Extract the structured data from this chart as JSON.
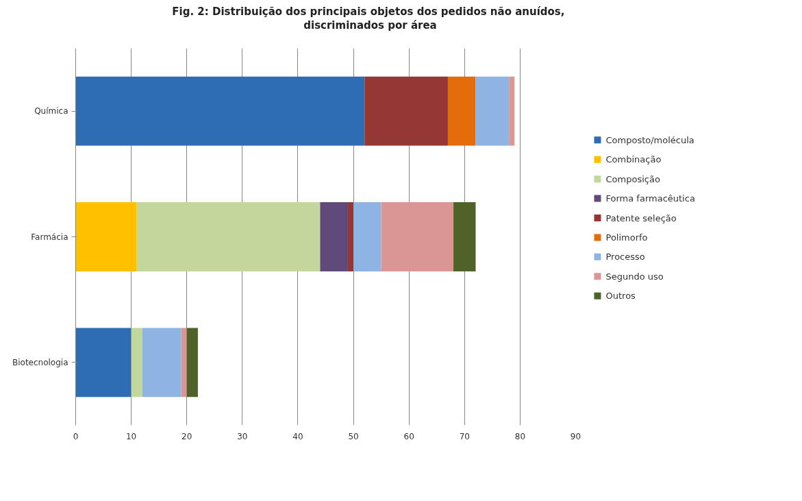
{
  "chart_data": {
    "type": "bar",
    "orientation": "horizontal",
    "stacked": true,
    "title": "Fig. 2: Distribuição  dos principais objetos dos pedidos não anuídos, discriminados por área",
    "categories": [
      "Química",
      "Farmácia",
      "Biotecnologia"
    ],
    "series": [
      {
        "name": "Composto/molécula",
        "color": "#2e6db4",
        "values": [
          52,
          null,
          10
        ]
      },
      {
        "name": "Combinação",
        "color": "#ffc000",
        "values": [
          null,
          11,
          null
        ]
      },
      {
        "name": "Composição",
        "color": "#c3d69b",
        "values": [
          null,
          33,
          2
        ]
      },
      {
        "name": "Forma farmacêutica",
        "color": "#604a7b",
        "values": [
          null,
          5,
          null
        ]
      },
      {
        "name": "Patente seleção",
        "color": "#953735",
        "values": [
          15,
          1,
          null
        ]
      },
      {
        "name": "Polimorfo",
        "color": "#e46c0a",
        "values": [
          5,
          null,
          null
        ]
      },
      {
        "name": "Processo",
        "color": "#8eb4e3",
        "values": [
          6,
          5,
          7
        ]
      },
      {
        "name": "Segundo uso",
        "color": "#d99694",
        "values": [
          1,
          13,
          1
        ]
      },
      {
        "name": "Outros",
        "color": "#4f6228",
        "values": [
          null,
          4,
          2
        ]
      }
    ],
    "xlim": [
      0,
      90
    ],
    "xticks": [
      0,
      10,
      20,
      30,
      40,
      50,
      60,
      70,
      80,
      90
    ],
    "grid": "x",
    "legend": "right"
  }
}
